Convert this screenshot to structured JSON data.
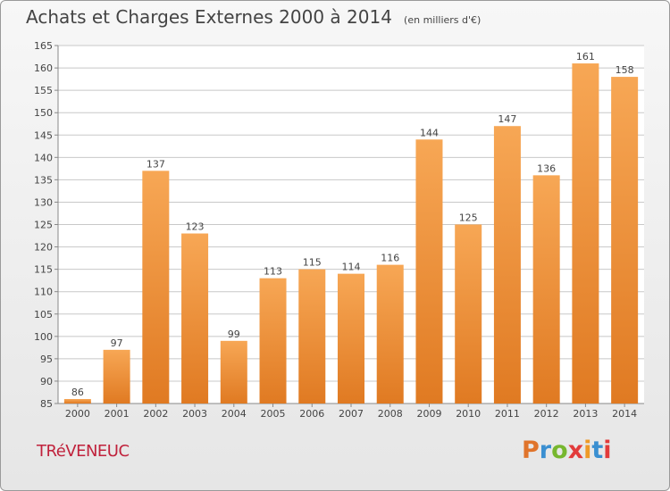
{
  "header": {
    "title": "Achats et Charges Externes 2000 à 2014",
    "subtitle": "(en milliers d'€)"
  },
  "footer": {
    "commune": "TRéVENEUC",
    "logo_text": "Proxiti",
    "logo_colors": [
      "#e0742b",
      "#3a8fd1",
      "#77b72f",
      "#e23b3b",
      "#ef9a26",
      "#3a8fd1",
      "#e23b3b"
    ]
  },
  "colors": {
    "bar_light": "#f7a755",
    "bar_dark": "#e07a22",
    "grid": "#c8c8c8",
    "axis_text": "#444444"
  },
  "chart_data": {
    "type": "bar",
    "title": "Achats et Charges Externes 2000 à 2014",
    "subtitle": "(en milliers d'€)",
    "categories": [
      "2000",
      "2001",
      "2002",
      "2003",
      "2004",
      "2005",
      "2006",
      "2007",
      "2008",
      "2009",
      "2010",
      "2011",
      "2012",
      "2013",
      "2014"
    ],
    "values": [
      86,
      97,
      137,
      123,
      99,
      113,
      115,
      114,
      116,
      144,
      125,
      147,
      136,
      161,
      158
    ],
    "value_labels": [
      "86",
      "97",
      "137",
      "123",
      "99",
      "113",
      "115",
      "114",
      "116",
      "144",
      "125",
      "147",
      "136",
      "161",
      "158"
    ],
    "ylim": [
      85,
      165
    ],
    "yticks": [
      "85",
      "90",
      "95",
      "100",
      "105",
      "110",
      "115",
      "120",
      "125",
      "130",
      "135",
      "140",
      "145",
      "150",
      "155",
      "160",
      "165"
    ],
    "grid": true,
    "xlabel": "",
    "ylabel": ""
  }
}
